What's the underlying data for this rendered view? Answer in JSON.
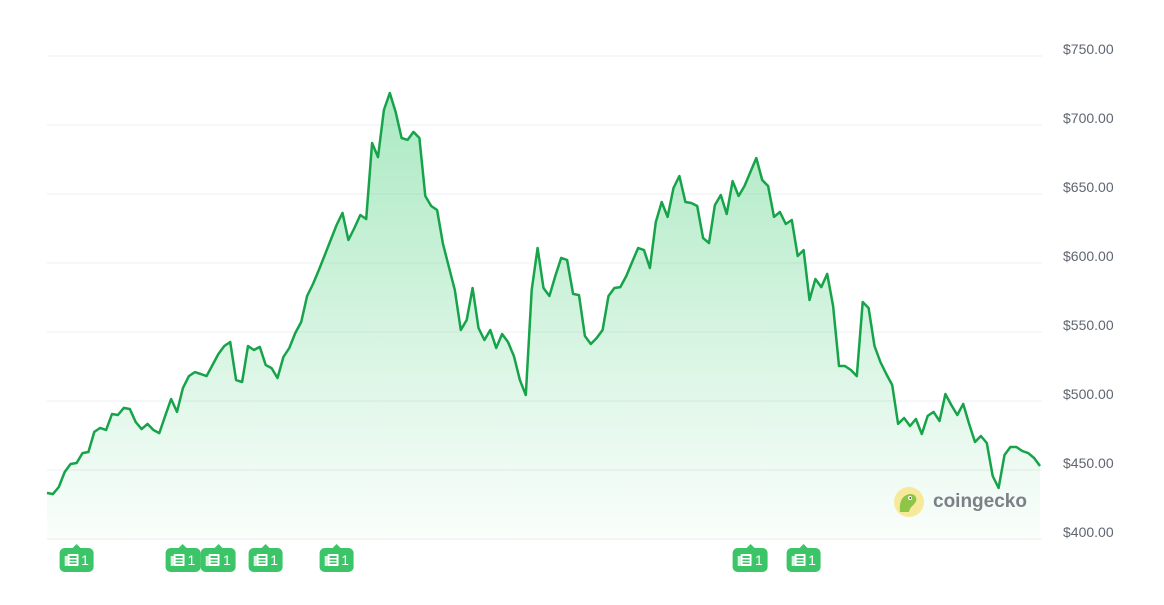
{
  "chart_data": {
    "type": "area",
    "title": "",
    "xlabel": "",
    "ylabel": "",
    "ylim": [
      400,
      750
    ],
    "yticks": [
      "$750.00",
      "$700.00",
      "$650.00",
      "$600.00",
      "$550.00",
      "$500.00",
      "$450.00",
      "$400.00"
    ],
    "ytick_values": [
      750,
      700,
      650,
      600,
      550,
      500,
      450,
      400
    ],
    "grid": true,
    "line_color": "#16a34a",
    "fill_color": "#22c55e",
    "series": [
      {
        "values": [
          428.3,
          427.5,
          432.6,
          443.5,
          449.3,
          450,
          457.2,
          458,
          472.5,
          475.4,
          473.9,
          485.5,
          484.8,
          489.9,
          489.1,
          479.7,
          474.6,
          478.3,
          473.9,
          471.7,
          484.1,
          496.4,
          487,
          504.3,
          513,
          515.9,
          514.5,
          513,
          521,
          529,
          534.8,
          537.7,
          510.1,
          508.7,
          534.8,
          531.9,
          534.1,
          521,
          518.8,
          511.6,
          526.8,
          533.3,
          544.2,
          552.2,
          571,
          579.7,
          589.9,
          600.7,
          611.6,
          622.5,
          631.2,
          611.6,
          620.3,
          629.7,
          626.8,
          681.9,
          671.7,
          705.8,
          718.1,
          704.3,
          685.5,
          684.1,
          689.9,
          685.5,
          643.5,
          636.2,
          633.3,
          608.7,
          592,
          575.4,
          546.4,
          553.6,
          576.8,
          547.8,
          539.1,
          546.4,
          533.3,
          543.5,
          537.7,
          527.5,
          510.1,
          499.3,
          575.4,
          605.8,
          576.8,
          571,
          585.5,
          598.6,
          597.1,
          572.5,
          571.7,
          542,
          536.2,
          540.6,
          546.4,
          571,
          576.8,
          577.5,
          585.5,
          595.7,
          605.8,
          604.3,
          591.3,
          624.6,
          639.1,
          628.3,
          649.3,
          658,
          639.1,
          638.4,
          636.2,
          613,
          609.4,
          636.9,
          644.2,
          630.4,
          654.3,
          643.5,
          650.7,
          660.9,
          671,
          655.1,
          650.7,
          628.3,
          631.9,
          623.2,
          626.1,
          600,
          604.3,
          568.1,
          583.3,
          577.5,
          587,
          563.8,
          520.3,
          520.3,
          517.4,
          513,
          566.7,
          562.3,
          534.8,
          523.2,
          514.5,
          506.5,
          478.3,
          482.6,
          476.8,
          481.9,
          471,
          484.1,
          487,
          480.4,
          500,
          492,
          484.8,
          492.8,
          478.3,
          465.2,
          469.6,
          464.5,
          440.6,
          431.9,
          455.8,
          461.6,
          461.6,
          458.7,
          457.2,
          453.6,
          447.8
        ]
      }
    ],
    "news_markers": [
      {
        "index": 5,
        "count": "1"
      },
      {
        "index": 23,
        "count": "1"
      },
      {
        "index": 29,
        "count": "1"
      },
      {
        "index": 37,
        "count": "1"
      },
      {
        "index": 49,
        "count": "1"
      },
      {
        "index": 119,
        "count": "1"
      },
      {
        "index": 128,
        "count": "1"
      }
    ],
    "news_icon": "newspaper-icon",
    "marker_color": "#3cc468"
  },
  "watermark": {
    "text": "coingecko",
    "icon": "gecko-logo-icon"
  }
}
